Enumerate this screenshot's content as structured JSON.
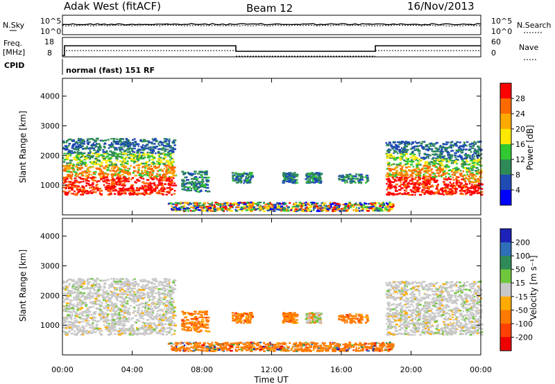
{
  "header": {
    "station": "Adak West (fitACF)",
    "beam": "Beam 12",
    "date": "16/Nov/2013"
  },
  "sky_panel": {
    "left_label": "N.Sky",
    "right_label": "N.Search",
    "left_ticks": [
      "10^5",
      "10^0"
    ],
    "right_ticks": [
      "10^5",
      "10^0"
    ]
  },
  "freq_panel": {
    "left_label_line1": "Freq.",
    "left_label_line2": "[MHz]",
    "left_ticks": [
      "18",
      "8"
    ],
    "right_label": "Nave",
    "right_ticks": [
      "60",
      "0"
    ],
    "cpid_label": "CPID",
    "mode_text": "normal (fast) 151 RF"
  },
  "chart_data": [
    {
      "type": "heatmap",
      "title": "",
      "ylabel": "Slant Range [km]",
      "ylim": [
        0,
        4600
      ],
      "y_ticks": [
        "1000",
        "2000",
        "3000",
        "4000"
      ],
      "colorbar": {
        "label": "Power [dB]",
        "ticks": [
          "28",
          "24",
          "20",
          "16",
          "12",
          "8",
          "4"
        ],
        "colors": [
          "#ff0000",
          "#ff6a00",
          "#ffaa00",
          "#ffe800",
          "#32c832",
          "#2e8b57",
          "#1f4bb3",
          "#0000ff"
        ]
      },
      "echo_regions_hours": [
        [
          0.0,
          6.4
        ],
        [
          6.8,
          8.3
        ],
        [
          9.7,
          10.8
        ],
        [
          12.6,
          14.8
        ],
        [
          15.8,
          17.5
        ],
        [
          18.5,
          24.0
        ]
      ]
    },
    {
      "type": "heatmap",
      "title": "",
      "ylabel": "Slant Range [km]",
      "xlabel": "Time UT",
      "ylim": [
        0,
        4600
      ],
      "y_ticks": [
        "1000",
        "2000",
        "3000",
        "4000"
      ],
      "x_ticks": [
        "00:00",
        "04:00",
        "08:00",
        "12:00",
        "16:00",
        "20:00",
        "00:00"
      ],
      "colorbar": {
        "label": "Velocity [m s⁻¹]",
        "ticks": [
          "200",
          "100",
          "50",
          "15",
          "-15",
          "-50",
          "-100",
          "-200"
        ],
        "colors": [
          "#1e22b8",
          "#2e6fb8",
          "#2e8b57",
          "#6fc83c",
          "#c8c8c8",
          "#ffaa00",
          "#ff7a00",
          "#ff4000",
          "#ee0000"
        ]
      }
    }
  ],
  "colors": {
    "ground_scatter": "#c8c8c8"
  }
}
